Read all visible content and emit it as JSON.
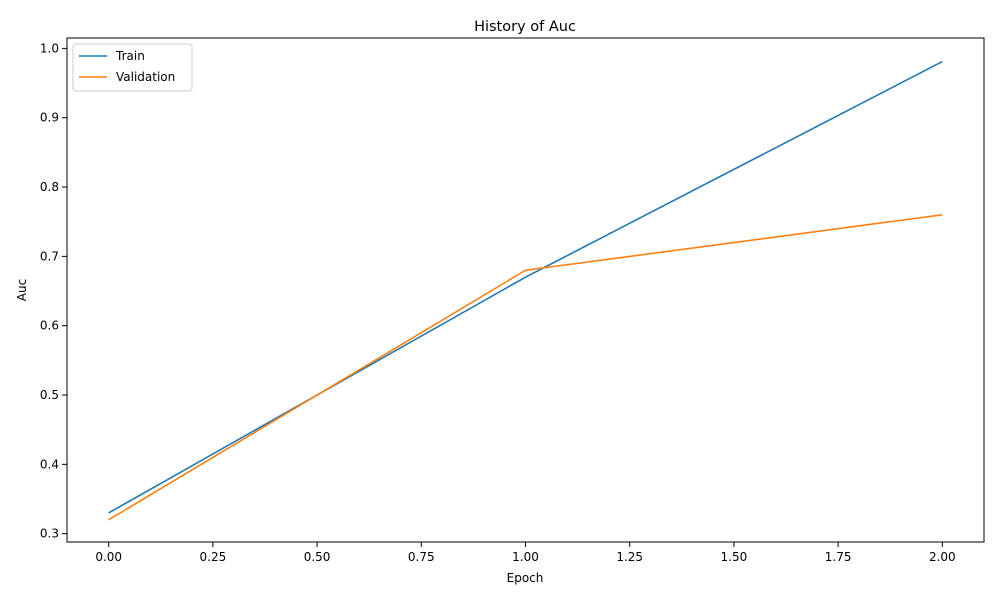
{
  "chart_data": {
    "type": "line",
    "title": "History of Auc",
    "xlabel": "Epoch",
    "ylabel": "Auc",
    "xlim": [
      -0.1,
      2.1
    ],
    "ylim": [
      0.288,
      1.015
    ],
    "xticks": [
      0.0,
      0.25,
      0.5,
      0.75,
      1.0,
      1.25,
      1.5,
      1.75,
      2.0
    ],
    "xtick_labels": [
      "0.00",
      "0.25",
      "0.50",
      "0.75",
      "1.00",
      "1.25",
      "1.50",
      "1.75",
      "2.00"
    ],
    "yticks": [
      0.3,
      0.4,
      0.5,
      0.6,
      0.7,
      0.8,
      0.9,
      1.0
    ],
    "ytick_labels": [
      "0.3",
      "0.4",
      "0.5",
      "0.6",
      "0.7",
      "0.8",
      "0.9",
      "1.0"
    ],
    "grid": false,
    "legend_position": "top-left",
    "x": [
      0,
      1,
      2
    ],
    "series": [
      {
        "name": "Train",
        "values": [
          0.33,
          0.67,
          0.981
        ],
        "color": "#1f77b4"
      },
      {
        "name": "Validation",
        "values": [
          0.32,
          0.68,
          0.76
        ],
        "color": "#ff7f0e"
      }
    ]
  }
}
